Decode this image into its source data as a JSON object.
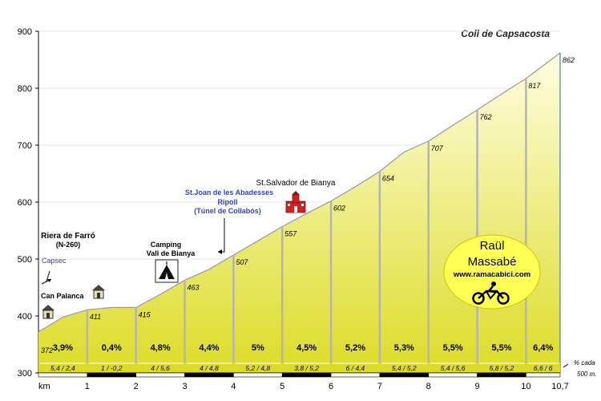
{
  "chart_data": {
    "type": "area",
    "title": "Coll de Capsacosta",
    "xlabel": "km",
    "ylabel": "",
    "ylim": [
      300,
      900
    ],
    "xlim": [
      0,
      10.7
    ],
    "y_ticks": [
      "300",
      "400",
      "500",
      "600",
      "700",
      "800",
      "900"
    ],
    "x_ticks": [
      {
        "x": 1,
        "label": "1"
      },
      {
        "x": 2,
        "label": "2"
      },
      {
        "x": 3,
        "label": "3"
      },
      {
        "x": 4,
        "label": "4"
      },
      {
        "x": 5,
        "label": "5"
      },
      {
        "x": 6,
        "label": "6"
      },
      {
        "x": 7,
        "label": "7"
      },
      {
        "x": 8,
        "label": "8"
      },
      {
        "x": 9,
        "label": "9"
      },
      {
        "x": 10,
        "label": "10"
      },
      {
        "x": 10.7,
        "label": "10,7"
      }
    ],
    "profile": [
      {
        "x": 0,
        "y": 372
      },
      {
        "x": 0.5,
        "y": 398
      },
      {
        "x": 1,
        "y": 411
      },
      {
        "x": 1.5,
        "y": 415
      },
      {
        "x": 2,
        "y": 415
      },
      {
        "x": 2.5,
        "y": 438
      },
      {
        "x": 3,
        "y": 463
      },
      {
        "x": 3.5,
        "y": 482
      },
      {
        "x": 4,
        "y": 507
      },
      {
        "x": 4.5,
        "y": 532
      },
      {
        "x": 5,
        "y": 557
      },
      {
        "x": 5.5,
        "y": 580
      },
      {
        "x": 6,
        "y": 602
      },
      {
        "x": 6.5,
        "y": 627
      },
      {
        "x": 7,
        "y": 654
      },
      {
        "x": 7.5,
        "y": 688
      },
      {
        "x": 8,
        "y": 707
      },
      {
        "x": 8.5,
        "y": 735
      },
      {
        "x": 9,
        "y": 762
      },
      {
        "x": 9.5,
        "y": 790
      },
      {
        "x": 10,
        "y": 817
      },
      {
        "x": 10.7,
        "y": 862
      }
    ],
    "km_points": [
      {
        "x": 0,
        "y": 372,
        "label": "372"
      },
      {
        "x": 1,
        "y": 411,
        "label": "411"
      },
      {
        "x": 2,
        "y": 415,
        "label": "415"
      },
      {
        "x": 3,
        "y": 463,
        "label": "463"
      },
      {
        "x": 4,
        "y": 507,
        "label": "507"
      },
      {
        "x": 5,
        "y": 557,
        "label": "557"
      },
      {
        "x": 6,
        "y": 602,
        "label": "602"
      },
      {
        "x": 7,
        "y": 654,
        "label": "654"
      },
      {
        "x": 8,
        "y": 707,
        "label": "707"
      },
      {
        "x": 9,
        "y": 762,
        "label": "762"
      },
      {
        "x": 10,
        "y": 817,
        "label": "817"
      },
      {
        "x": 10.7,
        "y": 862,
        "label": "862"
      }
    ],
    "segments": [
      {
        "from": 0,
        "to": 1,
        "gradient": "3,9%",
        "half_km": "5,4 / 2,4"
      },
      {
        "from": 1,
        "to": 2,
        "gradient": "0,4%",
        "half_km": "1 / -0,2"
      },
      {
        "from": 2,
        "to": 3,
        "gradient": "4,8%",
        "half_km": "4 / 5,6"
      },
      {
        "from": 3,
        "to": 4,
        "gradient": "4,4%",
        "half_km": "4 / 4,8"
      },
      {
        "from": 4,
        "to": 5,
        "gradient": "5%",
        "half_km": "5,2 / 4,8"
      },
      {
        "from": 5,
        "to": 6,
        "gradient": "4,5%",
        "half_km": "3,8 / 5,2"
      },
      {
        "from": 6,
        "to": 7,
        "gradient": "5,2%",
        "half_km": "6 / 4,4"
      },
      {
        "from": 7,
        "to": 8,
        "gradient": "5,3%",
        "half_km": "5,4 / 5,2"
      },
      {
        "from": 8,
        "to": 9,
        "gradient": "5,5%",
        "half_km": "5,4 / 5,6"
      },
      {
        "from": 9,
        "to": 10,
        "gradient": "5,5%",
        "half_km": "5,8 / 5,2"
      },
      {
        "from": 10,
        "to": 10.7,
        "gradient": "6,4%",
        "half_km": "6,6 / 6"
      }
    ],
    "half_km_note": [
      "% cada",
      "500 m."
    ],
    "annotations": [
      {
        "name": "riera-de-farro",
        "lines": [
          "Riera de Farró",
          "(N-260)"
        ],
        "color": "#000000",
        "bold": true
      },
      {
        "name": "capsec",
        "lines": [
          "Capsec"
        ],
        "color": "#3344aa",
        "bold": false
      },
      {
        "name": "can-palanca",
        "lines": [
          "Can Palanca"
        ],
        "color": "#000000",
        "bold": true
      },
      {
        "name": "camping",
        "lines": [
          "Camping",
          "Vall de Bianya"
        ],
        "color": "#000000",
        "bold": true
      },
      {
        "name": "st-joan",
        "lines": [
          "St.Joan de les Abadesses",
          "Ripoll",
          "(Túnel de Collabós)"
        ],
        "color": "#3344aa",
        "bold": true
      },
      {
        "name": "st-salvador",
        "lines": [
          "St.Salvador de Bianya"
        ],
        "color": "#000000",
        "bold": false
      }
    ],
    "branding": {
      "name_line1": "Raül",
      "name_line2": "Massabé",
      "website": "www.ramacabici.com"
    },
    "colors": {
      "fill_top": "#fffde0",
      "fill_bottom": "#dcdc28",
      "divider": "#b4b4b4",
      "gridline": "#e6e6e6",
      "badge": "#ffff55",
      "accent_blue": "#3344aa",
      "strip": "#dcdc28"
    }
  }
}
